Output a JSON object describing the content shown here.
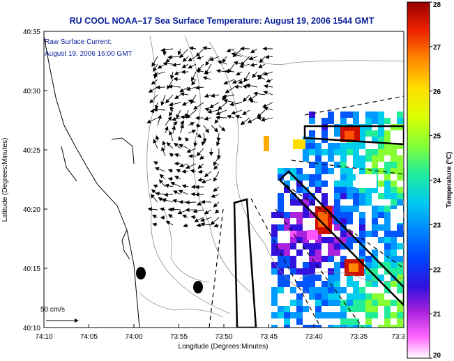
{
  "title": "RU COOL  NOAA–17  Sea Surface Temperature:  August 19, 2006 1544 GMT",
  "current_label": "Raw Surface Current:",
  "current_time": "August 19, 2006 16:00 GMT",
  "scale_label": "50 cm/s",
  "x_axis": {
    "label": "Longitude (Degrees:Minutes)",
    "ticks": [
      "74:10",
      "74:05",
      "74:00",
      "73:55",
      "73:50",
      "73:45",
      "73:40",
      "73:35",
      "73:3"
    ]
  },
  "y_axis": {
    "label": "Latitude (Degrees:Minutes)",
    "ticks": [
      "40:35",
      "40:30",
      "40:25",
      "40:20",
      "40:15",
      "40:10"
    ]
  },
  "colorbar": {
    "label": "Temperature (°C)",
    "ticks": [
      "28",
      "27",
      "26",
      "25",
      "24",
      "23",
      "22",
      "21",
      "20"
    ],
    "range": [
      20,
      28
    ]
  },
  "colors": {
    "title": "#0b1f9c",
    "land_outline": "#000000",
    "bathymetry": "#8a8a8a"
  }
}
